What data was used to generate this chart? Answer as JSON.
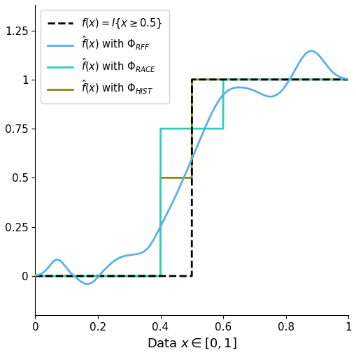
{
  "xlabel": "Data $x \\in [0, 1]$",
  "xlim": [
    0,
    1
  ],
  "ylim": [
    -0.2,
    1.38
  ],
  "yticks": [
    0.0,
    0.25,
    0.5,
    0.75,
    1.0,
    1.25
  ],
  "xticks": [
    0,
    0.2,
    0.4,
    0.6,
    0.8,
    1.0
  ],
  "color_rff": "#5aafea",
  "color_race": "#2ecfb8",
  "color_hist": "#8a8a1a",
  "color_true": "#000000",
  "legend_labels": [
    "$f(x) = I\\{x \\geq 0.5\\}$",
    "$\\hat{f}(x)$ with $\\Phi_{RFF}$",
    "$\\hat{f}(x)$ with $\\Phi_{RACE}$",
    "$\\hat{f}(x)$ with $\\Phi_{HIST}$"
  ],
  "figsize": [
    5.1,
    5.08
  ],
  "dpi": 100
}
